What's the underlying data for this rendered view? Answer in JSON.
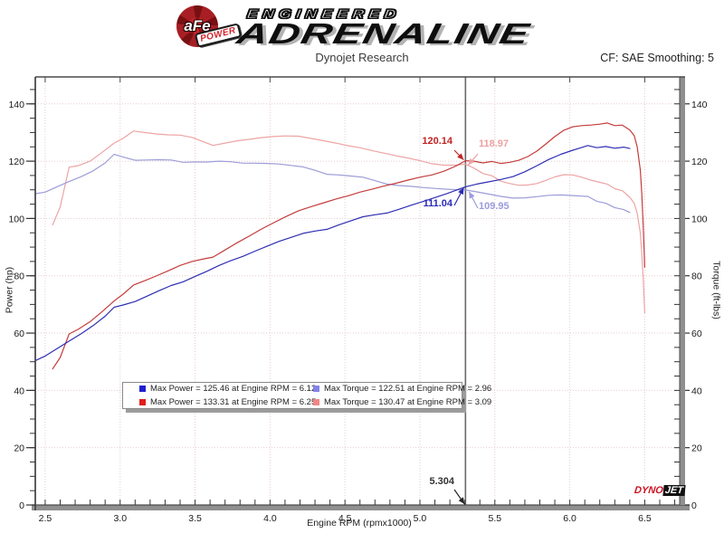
{
  "header": {
    "logo": {
      "circle_text": "aFe",
      "power_text": "POWER",
      "line1": "ENGINEERED",
      "line2": "ADRENALINE"
    },
    "subtitle": "Dynojet Research",
    "cf_label": "CF: SAE Smoothing: 5"
  },
  "footer_logo": {
    "part1": "DYNO",
    "part2": "JET"
  },
  "chart_data": {
    "type": "line",
    "title": "Dynojet Research",
    "xlabel": "Engine RPM (rpmx1000)",
    "ylabel_left": "Power (hp)",
    "ylabel_right": "Torque (ft-lbs)",
    "xlim": [
      2.434,
      6.751
    ],
    "ylim": [
      0,
      149.4
    ],
    "x_major_ticks": [
      2.5,
      3.0,
      3.5,
      4.0,
      4.5,
      5.0,
      5.5,
      6.0,
      6.5
    ],
    "x_minor_step": 0.1,
    "y_major_ticks": [
      0,
      20,
      40,
      60,
      80,
      100,
      120,
      140
    ],
    "y_minor_step": 5,
    "grid": "dotted",
    "grid_color": "#e7cdcd",
    "cursor": {
      "rpm": 5.304,
      "label": "5.304",
      "readouts": [
        {
          "text": "120.14",
          "series": "power_afe",
          "color": "#c22222"
        },
        {
          "text": "118.97",
          "series": "torque_afe",
          "color": "#eda0a0"
        },
        {
          "text": "111.04",
          "series": "power_baseline",
          "color": "#2a2ab8"
        },
        {
          "text": "109.95",
          "series": "torque_baseline",
          "color": "#9a9ade"
        }
      ]
    },
    "series": [
      {
        "name": "torque_afe",
        "color": "#eda4a4",
        "points": [
          [
            2.55,
            97.8
          ],
          [
            2.6,
            104.0
          ],
          [
            2.66,
            117.9
          ],
          [
            2.72,
            118.4
          ],
          [
            2.8,
            120.0
          ],
          [
            2.88,
            123.1
          ],
          [
            2.96,
            126.3
          ],
          [
            3.02,
            128.0
          ],
          [
            3.09,
            130.5
          ],
          [
            3.16,
            130.0
          ],
          [
            3.24,
            129.5
          ],
          [
            3.32,
            129.2
          ],
          [
            3.4,
            129.1
          ],
          [
            3.48,
            128.3
          ],
          [
            3.56,
            126.7
          ],
          [
            3.62,
            125.5
          ],
          [
            3.7,
            126.3
          ],
          [
            3.78,
            127.1
          ],
          [
            3.86,
            127.6
          ],
          [
            3.94,
            128.2
          ],
          [
            4.02,
            128.6
          ],
          [
            4.1,
            128.8
          ],
          [
            4.19,
            128.7
          ],
          [
            4.28,
            127.9
          ],
          [
            4.36,
            127.1
          ],
          [
            4.44,
            126.3
          ],
          [
            4.52,
            125.4
          ],
          [
            4.6,
            124.7
          ],
          [
            4.68,
            123.7
          ],
          [
            4.76,
            122.8
          ],
          [
            4.84,
            121.9
          ],
          [
            4.92,
            121.1
          ],
          [
            5.0,
            120.2
          ],
          [
            5.08,
            119.1
          ],
          [
            5.16,
            118.6
          ],
          [
            5.24,
            118.6
          ],
          [
            5.304,
            118.97
          ],
          [
            5.36,
            117.6
          ],
          [
            5.42,
            115.7
          ],
          [
            5.48,
            114.9
          ],
          [
            5.54,
            113.0
          ],
          [
            5.6,
            112.2
          ],
          [
            5.66,
            111.6
          ],
          [
            5.72,
            111.7
          ],
          [
            5.78,
            112.2
          ],
          [
            5.84,
            113.3
          ],
          [
            5.9,
            114.5
          ],
          [
            5.96,
            115.3
          ],
          [
            6.02,
            115.2
          ],
          [
            6.08,
            114.4
          ],
          [
            6.14,
            113.4
          ],
          [
            6.2,
            112.6
          ],
          [
            6.25,
            112.0
          ],
          [
            6.3,
            110.4
          ],
          [
            6.35,
            109.7
          ],
          [
            6.4,
            107.4
          ],
          [
            6.43,
            105.3
          ],
          [
            6.45,
            101.8
          ],
          [
            6.47,
            95.0
          ],
          [
            6.48,
            88.3
          ],
          [
            6.49,
            78.5
          ],
          [
            6.5,
            67.1
          ]
        ]
      },
      {
        "name": "torque_baseline",
        "color": "#9c9cd8",
        "points": [
          [
            2.44,
            108.7
          ],
          [
            2.5,
            109.2
          ],
          [
            2.58,
            111.1
          ],
          [
            2.66,
            112.9
          ],
          [
            2.74,
            114.6
          ],
          [
            2.82,
            116.6
          ],
          [
            2.9,
            119.4
          ],
          [
            2.96,
            122.4
          ],
          [
            3.02,
            121.4
          ],
          [
            3.1,
            120.3
          ],
          [
            3.18,
            120.4
          ],
          [
            3.26,
            120.5
          ],
          [
            3.34,
            120.4
          ],
          [
            3.42,
            119.6
          ],
          [
            3.5,
            119.7
          ],
          [
            3.58,
            119.7
          ],
          [
            3.66,
            120.0
          ],
          [
            3.74,
            119.8
          ],
          [
            3.82,
            119.3
          ],
          [
            3.9,
            119.3
          ],
          [
            3.98,
            119.2
          ],
          [
            4.06,
            119.0
          ],
          [
            4.14,
            118.5
          ],
          [
            4.22,
            118.0
          ],
          [
            4.3,
            116.8
          ],
          [
            4.38,
            115.4
          ],
          [
            4.46,
            115.2
          ],
          [
            4.54,
            114.8
          ],
          [
            4.62,
            114.4
          ],
          [
            4.7,
            113.2
          ],
          [
            4.78,
            112.0
          ],
          [
            4.86,
            111.5
          ],
          [
            4.94,
            111.2
          ],
          [
            5.02,
            110.8
          ],
          [
            5.1,
            110.5
          ],
          [
            5.18,
            110.2
          ],
          [
            5.26,
            110.0
          ],
          [
            5.304,
            109.95
          ],
          [
            5.38,
            109.3
          ],
          [
            5.46,
            108.5
          ],
          [
            5.54,
            107.7
          ],
          [
            5.62,
            107.1
          ],
          [
            5.7,
            107.2
          ],
          [
            5.78,
            107.6
          ],
          [
            5.86,
            108.1
          ],
          [
            5.94,
            108.2
          ],
          [
            6.02,
            108.0
          ],
          [
            6.08,
            107.8
          ],
          [
            6.12,
            107.7
          ],
          [
            6.18,
            106.0
          ],
          [
            6.24,
            105.3
          ],
          [
            6.3,
            103.8
          ],
          [
            6.36,
            103.1
          ],
          [
            6.4,
            102.1
          ]
        ]
      },
      {
        "name": "power_afe",
        "color": "#c43c3c",
        "points": [
          [
            2.55,
            47.5
          ],
          [
            2.6,
            51.5
          ],
          [
            2.66,
            59.7
          ],
          [
            2.72,
            61.3
          ],
          [
            2.8,
            64.0
          ],
          [
            2.88,
            67.5
          ],
          [
            2.96,
            71.2
          ],
          [
            3.02,
            73.6
          ],
          [
            3.09,
            76.8
          ],
          [
            3.16,
            78.2
          ],
          [
            3.24,
            79.9
          ],
          [
            3.32,
            81.7
          ],
          [
            3.4,
            83.6
          ],
          [
            3.48,
            85.0
          ],
          [
            3.56,
            85.9
          ],
          [
            3.62,
            86.5
          ],
          [
            3.7,
            89.0
          ],
          [
            3.78,
            91.5
          ],
          [
            3.86,
            93.8
          ],
          [
            3.94,
            96.2
          ],
          [
            4.02,
            98.4
          ],
          [
            4.1,
            100.5
          ],
          [
            4.19,
            102.7
          ],
          [
            4.28,
            104.2
          ],
          [
            4.36,
            105.5
          ],
          [
            4.44,
            106.8
          ],
          [
            4.52,
            107.9
          ],
          [
            4.6,
            109.2
          ],
          [
            4.68,
            110.2
          ],
          [
            4.76,
            111.3
          ],
          [
            4.84,
            112.3
          ],
          [
            4.92,
            113.4
          ],
          [
            5.0,
            114.4
          ],
          [
            5.08,
            115.2
          ],
          [
            5.16,
            116.5
          ],
          [
            5.24,
            118.3
          ],
          [
            5.304,
            120.14
          ],
          [
            5.36,
            120.0
          ],
          [
            5.42,
            119.4
          ],
          [
            5.48,
            119.9
          ],
          [
            5.54,
            119.2
          ],
          [
            5.6,
            119.6
          ],
          [
            5.66,
            120.3
          ],
          [
            5.72,
            121.6
          ],
          [
            5.78,
            123.5
          ],
          [
            5.84,
            126.0
          ],
          [
            5.9,
            128.6
          ],
          [
            5.96,
            130.8
          ],
          [
            6.02,
            132.0
          ],
          [
            6.08,
            132.4
          ],
          [
            6.14,
            132.6
          ],
          [
            6.2,
            132.9
          ],
          [
            6.25,
            133.31
          ],
          [
            6.3,
            132.4
          ],
          [
            6.35,
            132.6
          ],
          [
            6.4,
            130.9
          ],
          [
            6.43,
            128.9
          ],
          [
            6.45,
            125.0
          ],
          [
            6.47,
            117.0
          ],
          [
            6.48,
            109.0
          ],
          [
            6.49,
            97.0
          ],
          [
            6.5,
            83.0
          ]
        ]
      },
      {
        "name": "power_baseline",
        "color": "#2e2eb4",
        "points": [
          [
            2.44,
            50.5
          ],
          [
            2.5,
            52.0
          ],
          [
            2.58,
            54.6
          ],
          [
            2.66,
            57.2
          ],
          [
            2.74,
            59.8
          ],
          [
            2.82,
            62.6
          ],
          [
            2.9,
            65.9
          ],
          [
            2.96,
            69.0
          ],
          [
            3.02,
            69.8
          ],
          [
            3.1,
            71.0
          ],
          [
            3.18,
            72.9
          ],
          [
            3.26,
            74.8
          ],
          [
            3.34,
            76.6
          ],
          [
            3.42,
            77.9
          ],
          [
            3.5,
            79.8
          ],
          [
            3.58,
            81.6
          ],
          [
            3.66,
            83.6
          ],
          [
            3.74,
            85.3
          ],
          [
            3.82,
            86.8
          ],
          [
            3.9,
            88.6
          ],
          [
            3.98,
            90.3
          ],
          [
            4.06,
            92.0
          ],
          [
            4.14,
            93.4
          ],
          [
            4.22,
            94.8
          ],
          [
            4.3,
            95.6
          ],
          [
            4.38,
            96.2
          ],
          [
            4.46,
            97.8
          ],
          [
            4.54,
            99.2
          ],
          [
            4.62,
            100.6
          ],
          [
            4.7,
            101.3
          ],
          [
            4.78,
            101.9
          ],
          [
            4.86,
            103.2
          ],
          [
            4.94,
            104.6
          ],
          [
            5.02,
            105.9
          ],
          [
            5.1,
            107.3
          ],
          [
            5.18,
            108.7
          ],
          [
            5.26,
            110.2
          ],
          [
            5.304,
            111.04
          ],
          [
            5.38,
            112.0
          ],
          [
            5.46,
            112.8
          ],
          [
            5.54,
            113.6
          ],
          [
            5.62,
            114.6
          ],
          [
            5.7,
            116.3
          ],
          [
            5.78,
            118.4
          ],
          [
            5.86,
            120.6
          ],
          [
            5.94,
            122.4
          ],
          [
            6.02,
            123.8
          ],
          [
            6.08,
            124.8
          ],
          [
            6.12,
            125.46
          ],
          [
            6.18,
            124.7
          ],
          [
            6.24,
            125.1
          ],
          [
            6.3,
            124.5
          ],
          [
            6.36,
            124.9
          ],
          [
            6.4,
            124.4
          ]
        ]
      }
    ],
    "legend": [
      {
        "swatch": "#1f1fd0",
        "label": "Max Power = 125.46 at Engine RPM = 6.12"
      },
      {
        "swatch": "#8282e8",
        "label": "Max Torque = 122.51 at Engine RPM = 2.96"
      },
      {
        "swatch": "#e01d1d",
        "label": "Max Power = 133.31 at Engine RPM = 6.25"
      },
      {
        "swatch": "#f28585",
        "label": "Max Torque = 130.47 at Engine RPM = 3.09"
      }
    ]
  }
}
